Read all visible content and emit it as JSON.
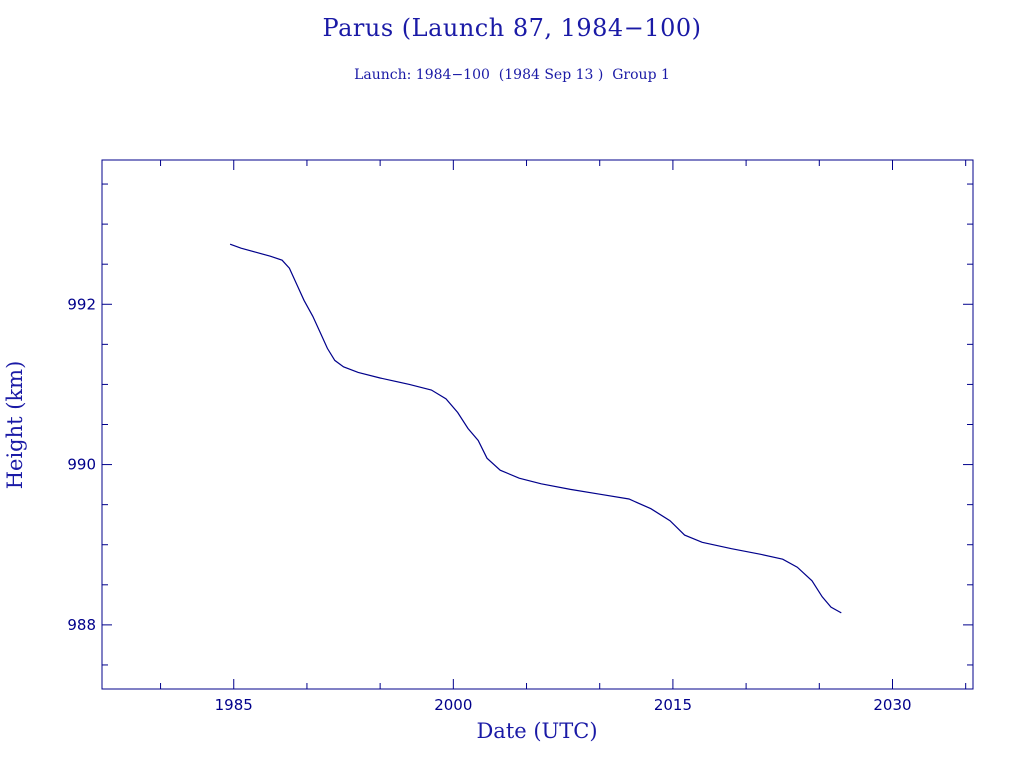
{
  "title": "Parus (Launch 87, 1984−100)",
  "subtitle": "Launch: 1984−100  (1984 Sep 13 )  Group 1",
  "chart_data": {
    "type": "line",
    "title": "Parus (Launch 87, 1984−100)",
    "subtitle": "Launch: 1984−100  (1984 Sep 13 )  Group 1",
    "xlabel": "Date (UTC)",
    "ylabel": "Height (km)",
    "xlim": [
      1976,
      2035.5
    ],
    "ylim": [
      987.2,
      993.8
    ],
    "xticks": [
      1985,
      2000,
      2015,
      2030
    ],
    "yticks": [
      988,
      990,
      992
    ],
    "line_color": "#00008b",
    "grid": false,
    "series": [
      {
        "values": [
          [
            1984.75,
            992.75
          ],
          [
            1985.5,
            992.7
          ],
          [
            1986.5,
            992.65
          ],
          [
            1987.5,
            992.6
          ],
          [
            1988.3,
            992.55
          ],
          [
            1988.8,
            992.45
          ],
          [
            1989.3,
            992.25
          ],
          [
            1989.8,
            992.05
          ],
          [
            1990.4,
            991.85
          ],
          [
            1990.9,
            991.65
          ],
          [
            1991.4,
            991.45
          ],
          [
            1991.9,
            991.3
          ],
          [
            1992.5,
            991.22
          ],
          [
            1993.5,
            991.15
          ],
          [
            1995,
            991.08
          ],
          [
            1997,
            991.0
          ],
          [
            1998.5,
            990.93
          ],
          [
            1999.5,
            990.82
          ],
          [
            2000.3,
            990.65
          ],
          [
            2001.0,
            990.45
          ],
          [
            2001.7,
            990.3
          ],
          [
            2002.3,
            990.08
          ],
          [
            2003.2,
            989.93
          ],
          [
            2004.5,
            989.83
          ],
          [
            2006,
            989.76
          ],
          [
            2008,
            989.69
          ],
          [
            2010,
            989.63
          ],
          [
            2012,
            989.57
          ],
          [
            2013.5,
            989.45
          ],
          [
            2014.8,
            989.3
          ],
          [
            2015.8,
            989.12
          ],
          [
            2017,
            989.03
          ],
          [
            2019,
            988.95
          ],
          [
            2021,
            988.88
          ],
          [
            2022.5,
            988.82
          ],
          [
            2023.5,
            988.72
          ],
          [
            2024.5,
            988.55
          ],
          [
            2025.2,
            988.35
          ],
          [
            2025.8,
            988.22
          ],
          [
            2026.5,
            988.15
          ]
        ]
      }
    ]
  }
}
